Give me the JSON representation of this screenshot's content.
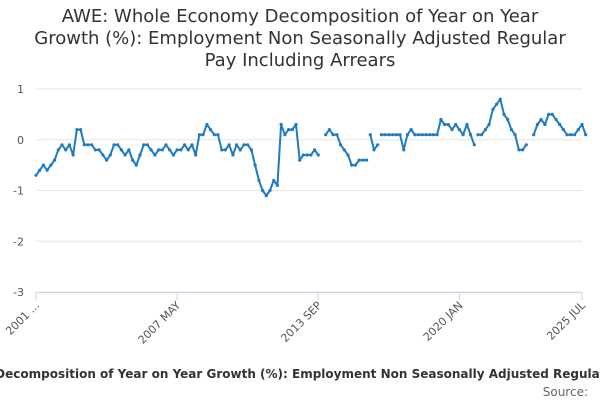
{
  "title_lines": [
    "AWE: Whole Economy Decomposition of Year on Year",
    "Growth (%): Employment Non Seasonally Adjusted Regular",
    "Pay Including Arrears"
  ],
  "legend_label": "AWE: Whole Economy Decomposition of Year on Year Growth (%): Employment Non Seasonally Adjusted Regular Pay Including Arrears",
  "credits": "Source:",
  "colors": {
    "series": "#1f7bc1",
    "grid": "#e6e6e6",
    "axis": "#ccd6eb"
  },
  "chart_data": {
    "type": "line",
    "title": "AWE: Whole Economy Decomposition of Year on Year Growth (%): Employment Non Seasonally Adjusted Regular Pay Including Arrears",
    "xlabel": "",
    "ylabel": "",
    "ylim": [
      -3,
      1
    ],
    "yticks": [
      1,
      0,
      -1,
      -2,
      -3
    ],
    "x_tick_labels": [
      {
        "date": "2001-01",
        "label": "2001 ..."
      },
      {
        "date": "2007-05",
        "label": "2007 MAY"
      },
      {
        "date": "2013-09",
        "label": "2013 SEP"
      },
      {
        "date": "2020-01",
        "label": "2020 JAN"
      },
      {
        "date": "2025-07",
        "label": "2025 JUL"
      }
    ],
    "grid": true,
    "legend": "bottom",
    "series": [
      {
        "name": "AWE: Whole Economy Decomposition of Year on Year Growth (%): Employment Non Seasonally Adjusted Regular Pay Including Arrears",
        "color": "#1f7bc1",
        "segments": [
          [
            [
              "2001-01",
              -0.7
            ],
            [
              "2001-03",
              -0.6
            ],
            [
              "2001-05",
              -0.5
            ],
            [
              "2001-07",
              -0.6
            ],
            [
              "2001-09",
              -0.5
            ],
            [
              "2001-11",
              -0.4
            ],
            [
              "2002-01",
              -0.2
            ],
            [
              "2002-03",
              -0.1
            ],
            [
              "2002-05",
              -0.2
            ],
            [
              "2002-07",
              -0.1
            ],
            [
              "2002-09",
              -0.3
            ],
            [
              "2002-11",
              0.2
            ],
            [
              "2003-01",
              0.2
            ],
            [
              "2003-03",
              -0.1
            ],
            [
              "2003-05",
              -0.1
            ],
            [
              "2003-07",
              -0.1
            ],
            [
              "2003-09",
              -0.2
            ],
            [
              "2003-11",
              -0.2
            ],
            [
              "2004-01",
              -0.3
            ],
            [
              "2004-03",
              -0.4
            ],
            [
              "2004-05",
              -0.3
            ],
            [
              "2004-07",
              -0.1
            ],
            [
              "2004-09",
              -0.1
            ],
            [
              "2004-11",
              -0.2
            ],
            [
              "2005-01",
              -0.3
            ],
            [
              "2005-03",
              -0.2
            ],
            [
              "2005-05",
              -0.4
            ],
            [
              "2005-07",
              -0.5
            ],
            [
              "2005-09",
              -0.3
            ],
            [
              "2005-11",
              -0.1
            ],
            [
              "2006-01",
              -0.1
            ],
            [
              "2006-03",
              -0.2
            ],
            [
              "2006-05",
              -0.3
            ],
            [
              "2006-07",
              -0.2
            ],
            [
              "2006-09",
              -0.2
            ],
            [
              "2006-11",
              -0.1
            ],
            [
              "2007-01",
              -0.2
            ],
            [
              "2007-03",
              -0.3
            ],
            [
              "2007-05",
              -0.2
            ],
            [
              "2007-07",
              -0.2
            ],
            [
              "2007-09",
              -0.1
            ],
            [
              "2007-11",
              -0.2
            ],
            [
              "2008-01",
              -0.1
            ],
            [
              "2008-03",
              -0.3
            ],
            [
              "2008-05",
              0.1
            ],
            [
              "2008-07",
              0.1
            ],
            [
              "2008-09",
              0.3
            ],
            [
              "2008-11",
              0.2
            ],
            [
              "2009-01",
              0.1
            ],
            [
              "2009-03",
              0.1
            ],
            [
              "2009-05",
              -0.2
            ],
            [
              "2009-07",
              -0.2
            ],
            [
              "2009-09",
              -0.1
            ],
            [
              "2009-11",
              -0.3
            ],
            [
              "2010-01",
              -0.1
            ],
            [
              "2010-03",
              -0.2
            ],
            [
              "2010-05",
              -0.1
            ],
            [
              "2010-07",
              -0.1
            ],
            [
              "2010-09",
              -0.2
            ],
            [
              "2010-11",
              -0.5
            ],
            [
              "2011-01",
              -0.8
            ],
            [
              "2011-03",
              -1.0
            ],
            [
              "2011-05",
              -1.1
            ],
            [
              "2011-07",
              -1.0
            ],
            [
              "2011-09",
              -0.8
            ],
            [
              "2011-11",
              -0.9
            ],
            [
              "2012-01",
              0.3
            ],
            [
              "2012-03",
              0.1
            ],
            [
              "2012-05",
              0.2
            ],
            [
              "2012-07",
              0.2
            ],
            [
              "2012-09",
              0.3
            ],
            [
              "2012-11",
              -0.4
            ],
            [
              "2013-01",
              -0.3
            ],
            [
              "2013-03",
              -0.3
            ],
            [
              "2013-05",
              -0.3
            ],
            [
              "2013-07",
              -0.2
            ],
            [
              "2013-09",
              -0.3
            ]
          ],
          [
            [
              "2014-01",
              0.1
            ],
            [
              "2014-03",
              0.2
            ],
            [
              "2014-05",
              0.1
            ],
            [
              "2014-07",
              0.1
            ],
            [
              "2014-09",
              -0.1
            ],
            [
              "2014-11",
              -0.2
            ],
            [
              "2015-01",
              -0.3
            ],
            [
              "2015-03",
              -0.5
            ],
            [
              "2015-05",
              -0.5
            ],
            [
              "2015-07",
              -0.4
            ],
            [
              "2015-09",
              -0.4
            ],
            [
              "2015-11",
              -0.4
            ]
          ],
          [
            [
              "2016-01",
              0.1
            ],
            [
              "2016-03",
              -0.2
            ],
            [
              "2016-05",
              -0.1
            ]
          ],
          [
            [
              "2016-07",
              0.1
            ],
            [
              "2016-09",
              0.1
            ],
            [
              "2016-11",
              0.1
            ],
            [
              "2017-01",
              0.1
            ],
            [
              "2017-03",
              0.1
            ],
            [
              "2017-05",
              0.1
            ],
            [
              "2017-07",
              -0.2
            ],
            [
              "2017-09",
              0.1
            ],
            [
              "2017-11",
              0.2
            ],
            [
              "2018-01",
              0.1
            ],
            [
              "2018-03",
              0.1
            ],
            [
              "2018-05",
              0.1
            ],
            [
              "2018-07",
              0.1
            ],
            [
              "2018-09",
              0.1
            ],
            [
              "2018-11",
              0.1
            ],
            [
              "2019-01",
              0.1
            ],
            [
              "2019-03",
              0.4
            ],
            [
              "2019-05",
              0.3
            ],
            [
              "2019-07",
              0.3
            ],
            [
              "2019-09",
              0.2
            ],
            [
              "2019-11",
              0.3
            ],
            [
              "2020-01",
              0.2
            ],
            [
              "2020-03",
              0.1
            ],
            [
              "2020-05",
              0.3
            ],
            [
              "2020-07",
              0.1
            ],
            [
              "2020-09",
              -0.1
            ]
          ],
          [
            [
              "2020-11",
              0.1
            ],
            [
              "2021-01",
              0.1
            ],
            [
              "2021-03",
              0.2
            ],
            [
              "2021-05",
              0.3
            ],
            [
              "2021-07",
              0.6
            ],
            [
              "2021-09",
              0.7
            ],
            [
              "2021-11",
              0.8
            ],
            [
              "2022-01",
              0.5
            ],
            [
              "2022-03",
              0.4
            ],
            [
              "2022-05",
              0.2
            ],
            [
              "2022-07",
              0.1
            ],
            [
              "2022-09",
              -0.2
            ],
            [
              "2022-11",
              -0.2
            ],
            [
              "2023-01",
              -0.1
            ]
          ],
          [
            [
              "2023-05",
              0.1
            ],
            [
              "2023-07",
              0.3
            ],
            [
              "2023-09",
              0.4
            ],
            [
              "2023-11",
              0.3
            ],
            [
              "2024-01",
              0.5
            ],
            [
              "2024-03",
              0.5
            ],
            [
              "2024-05",
              0.4
            ],
            [
              "2024-07",
              0.3
            ],
            [
              "2024-09",
              0.2
            ],
            [
              "2024-11",
              0.1
            ],
            [
              "2025-01",
              0.1
            ],
            [
              "2025-03",
              0.1
            ],
            [
              "2025-05",
              0.2
            ],
            [
              "2025-07",
              0.3
            ],
            [
              "2025-09",
              0.1
            ]
          ]
        ]
      }
    ]
  }
}
